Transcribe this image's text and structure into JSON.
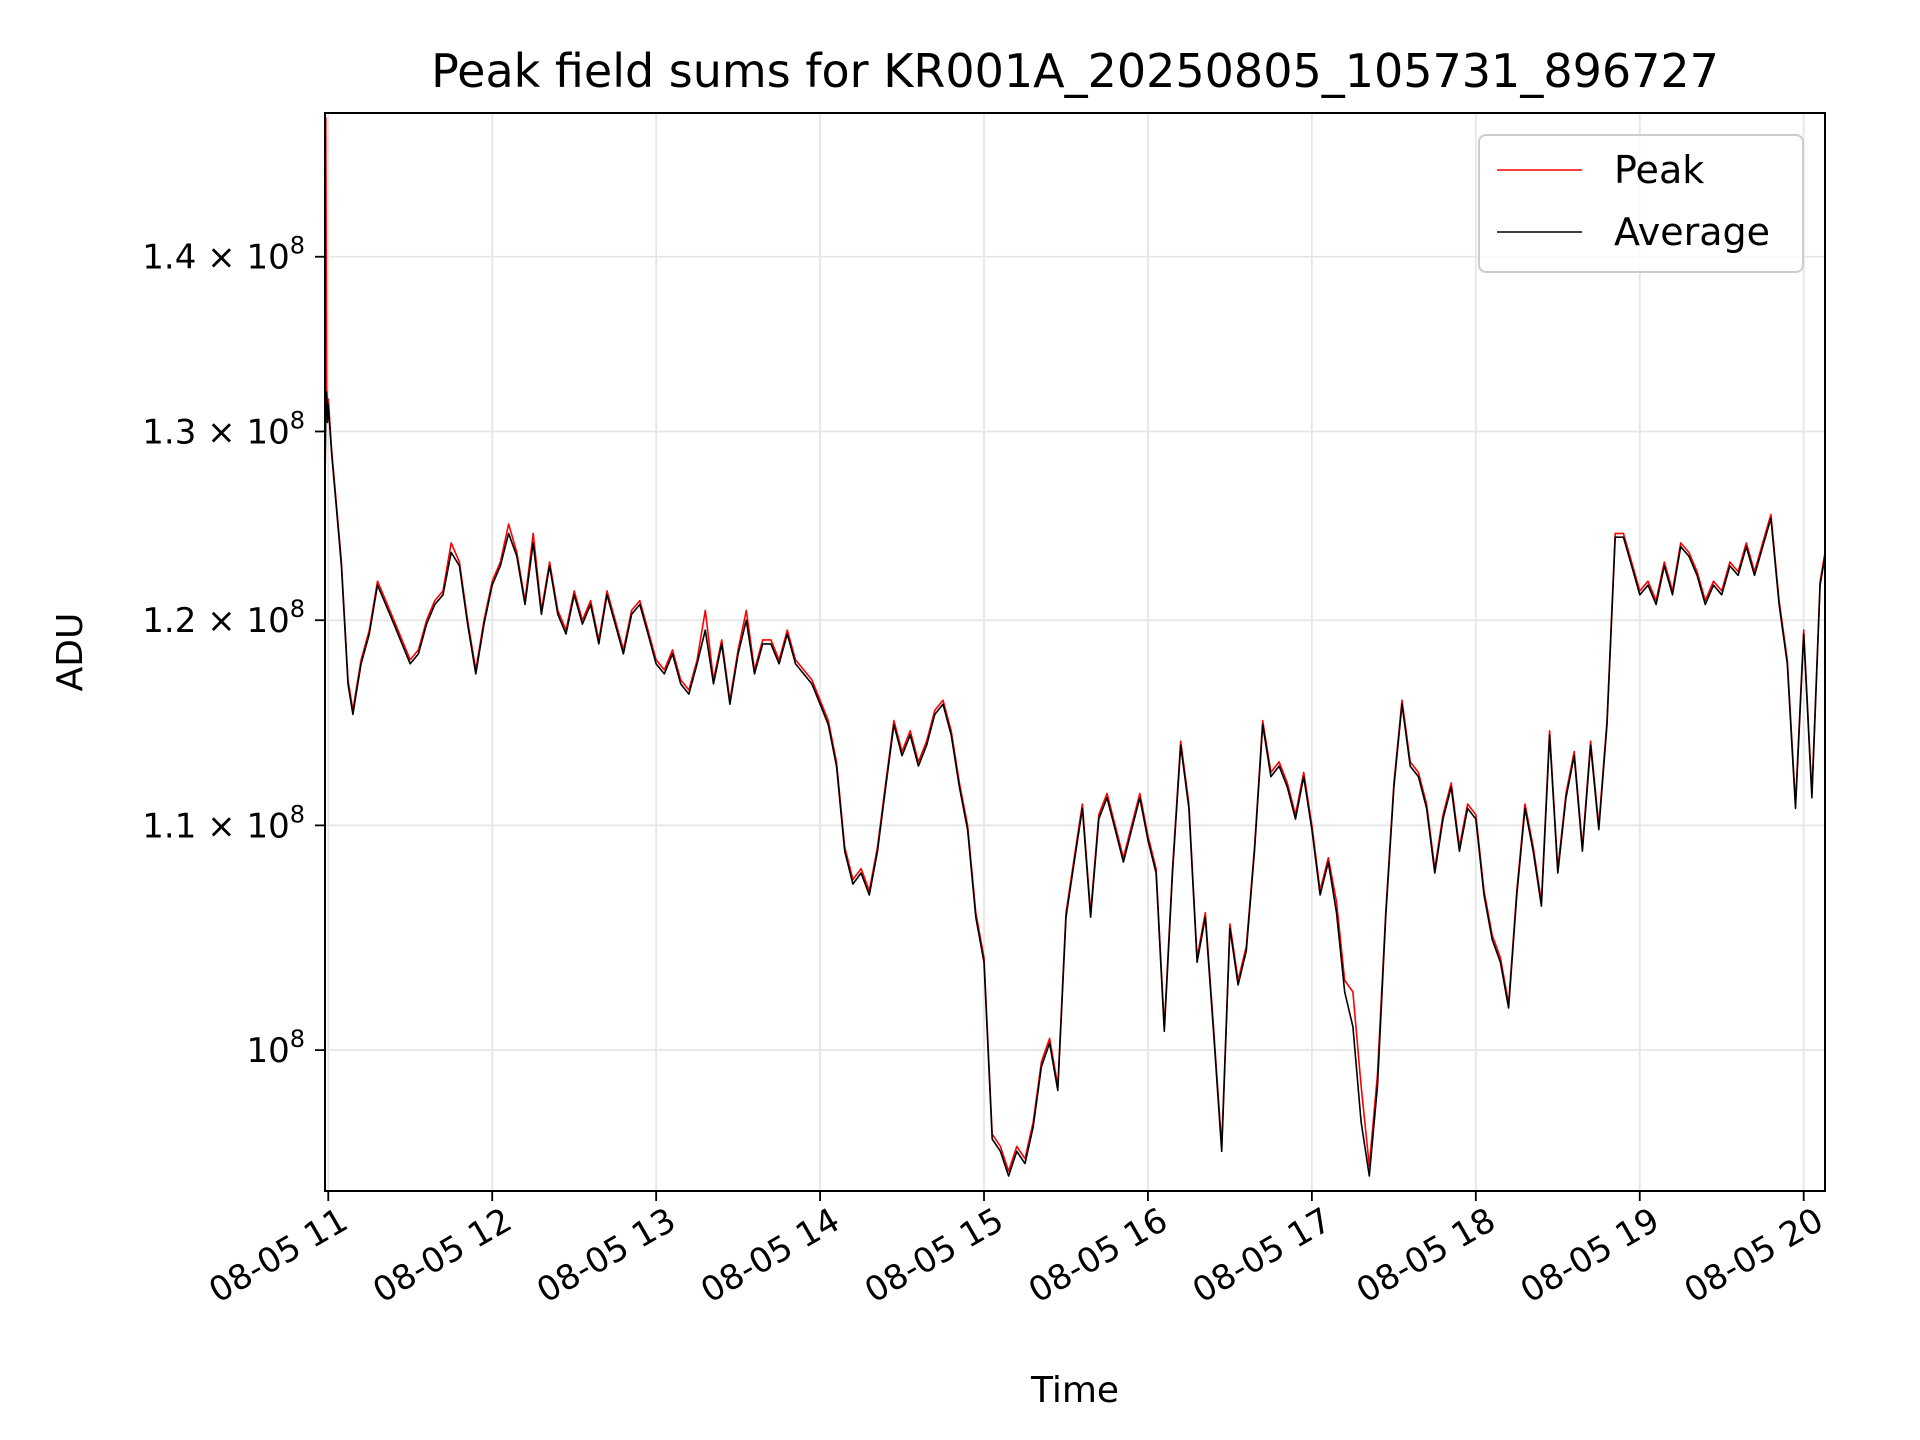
{
  "chart_data": {
    "type": "line",
    "title": "Peak field sums for KR001A_20250805_105731_896727",
    "xlabel": "Time",
    "ylabel": "ADU",
    "x_unit": "hour of day on 08-05",
    "xlim": [
      10.98,
      20.13
    ],
    "ylim": [
      94200000,
      148800000
    ],
    "y_scale": "log",
    "grid": true,
    "legend_position": "upper right",
    "x_ticks": [
      {
        "value": 11,
        "label": "08-05 11"
      },
      {
        "value": 12,
        "label": "08-05 12"
      },
      {
        "value": 13,
        "label": "08-05 13"
      },
      {
        "value": 14,
        "label": "08-05 14"
      },
      {
        "value": 15,
        "label": "08-05 15"
      },
      {
        "value": 16,
        "label": "08-05 16"
      },
      {
        "value": 17,
        "label": "08-05 17"
      },
      {
        "value": 18,
        "label": "08-05 18"
      },
      {
        "value": 19,
        "label": "08-05 19"
      },
      {
        "value": 20,
        "label": "08-05 20"
      }
    ],
    "y_ticks": [
      {
        "value": 100000000,
        "mantissa": "10",
        "exponent": "8",
        "prefix": ""
      },
      {
        "value": 110000000,
        "mantissa": "10",
        "exponent": "8",
        "prefix": "1.1 × "
      },
      {
        "value": 120000000,
        "mantissa": "10",
        "exponent": "8",
        "prefix": "1.2 × "
      },
      {
        "value": 130000000,
        "mantissa": "10",
        "exponent": "8",
        "prefix": "1.3 × "
      },
      {
        "value": 140000000,
        "mantissa": "10",
        "exponent": "8",
        "prefix": "1.4 × "
      }
    ],
    "series": [
      {
        "name": "Peak",
        "color": "#ff0000",
        "x": [
          10.98,
          10.985,
          10.99,
          10.995,
          11.0,
          11.02,
          11.05,
          11.08,
          11.12,
          11.15,
          11.17,
          11.2,
          11.25,
          11.3,
          11.35,
          11.4,
          11.45,
          11.5,
          11.55,
          11.6,
          11.65,
          11.7,
          11.75,
          11.8,
          11.85,
          11.9,
          11.95,
          12.0,
          12.05,
          12.1,
          12.15,
          12.2,
          12.25,
          12.3,
          12.35,
          12.4,
          12.45,
          12.5,
          12.55,
          12.6,
          12.65,
          12.7,
          12.75,
          12.8,
          12.85,
          12.9,
          12.95,
          13.0,
          13.05,
          13.1,
          13.15,
          13.2,
          13.25,
          13.3,
          13.35,
          13.4,
          13.45,
          13.5,
          13.55,
          13.6,
          13.65,
          13.7,
          13.75,
          13.8,
          13.85,
          13.9,
          13.95,
          14.0,
          14.05,
          14.1,
          14.15,
          14.2,
          14.25,
          14.3,
          14.35,
          14.4,
          14.45,
          14.5,
          14.55,
          14.6,
          14.65,
          14.7,
          14.75,
          14.8,
          14.85,
          14.9,
          14.95,
          15.0,
          15.05,
          15.1,
          15.15,
          15.2,
          15.25,
          15.3,
          15.35,
          15.4,
          15.45,
          15.5,
          15.55,
          15.6,
          15.65,
          15.7,
          15.75,
          15.8,
          15.85,
          15.9,
          15.95,
          16.0,
          16.05,
          16.1,
          16.15,
          16.2,
          16.25,
          16.3,
          16.35,
          16.4,
          16.45,
          16.5,
          16.55,
          16.6,
          16.65,
          16.7,
          16.75,
          16.8,
          16.85,
          16.9,
          16.95,
          17.0,
          17.05,
          17.1,
          17.15,
          17.2,
          17.25,
          17.3,
          17.35,
          17.4,
          17.45,
          17.5,
          17.55,
          17.6,
          17.65,
          17.7,
          17.75,
          17.8,
          17.85,
          17.9,
          17.95,
          18.0,
          18.05,
          18.1,
          18.15,
          18.2,
          18.25,
          18.3,
          18.35,
          18.4,
          18.45,
          18.5,
          18.55,
          18.6,
          18.65,
          18.7,
          18.75,
          18.8,
          18.85,
          18.9,
          18.95,
          19.0,
          19.05,
          19.1,
          19.15,
          19.2,
          19.25,
          19.3,
          19.35,
          19.4,
          19.45,
          19.5,
          19.55,
          19.6,
          19.65,
          19.7,
          19.75,
          19.8,
          19.85,
          19.9,
          19.95,
          20.0,
          20.05,
          20.1,
          20.13
        ],
        "values": [
          127000000,
          148500000,
          132500000,
          131000000,
          131800000,
          129000000,
          126000000,
          123000000,
          117000000,
          115500000,
          116500000,
          118000000,
          119500000,
          122000000,
          121000000,
          120000000,
          119000000,
          118000000,
          118500000,
          120000000,
          121000000,
          121500000,
          124000000,
          123000000,
          120000000,
          117500000,
          120000000,
          122000000,
          123000000,
          125000000,
          123500000,
          121000000,
          124500000,
          120500000,
          123000000,
          120500000,
          119500000,
          121500000,
          120000000,
          121000000,
          119000000,
          121500000,
          120000000,
          118500000,
          120500000,
          121000000,
          119500000,
          118000000,
          117500000,
          118500000,
          117000000,
          116500000,
          118000000,
          120500000,
          117000000,
          119000000,
          116000000,
          118500000,
          120500000,
          117500000,
          119000000,
          119000000,
          118000000,
          119500000,
          118000000,
          117500000,
          117000000,
          116000000,
          115000000,
          113000000,
          109000000,
          107500000,
          108000000,
          107000000,
          109000000,
          112000000,
          115000000,
          113500000,
          114500000,
          113000000,
          114000000,
          115500000,
          116000000,
          114500000,
          112000000,
          110000000,
          106000000,
          104000000,
          96500000,
          96000000,
          95000000,
          96000000,
          95500000,
          97000000,
          99500000,
          100500000,
          98500000,
          106000000,
          108500000,
          111000000,
          106000000,
          110500000,
          111500000,
          110000000,
          108500000,
          110000000,
          111500000,
          109500000,
          108000000,
          101000000,
          108000000,
          114000000,
          111000000,
          104000000,
          106000000,
          101000000,
          96000000,
          105500000,
          103000000,
          104500000,
          109000000,
          115000000,
          112500000,
          113000000,
          112000000,
          110500000,
          112500000,
          110000000,
          107000000,
          108500000,
          106500000,
          103000000,
          102500000,
          98500000,
          95200000,
          99000000,
          106000000,
          112000000,
          116000000,
          113000000,
          112500000,
          111000000,
          108000000,
          110500000,
          112000000,
          109000000,
          111000000,
          110500000,
          107000000,
          105000000,
          104000000,
          102000000,
          107000000,
          111000000,
          109000000,
          106500000,
          114500000,
          108000000,
          111500000,
          113500000,
          109000000,
          114000000,
          110000000,
          115000000,
          124500000,
          124500000,
          123000000,
          121500000,
          122000000,
          121000000,
          123000000,
          121500000,
          124000000,
          123500000,
          122500000,
          121000000,
          122000000,
          121500000,
          123000000,
          122500000,
          124000000,
          122500000,
          124000000,
          125500000,
          121000000,
          118000000,
          111000000,
          119500000,
          111500000,
          122000000,
          123500000
        ]
      },
      {
        "name": "Average",
        "color": "#000000",
        "x": [
          10.98,
          10.985,
          10.99,
          10.995,
          11.0,
          11.02,
          11.05,
          11.08,
          11.12,
          11.15,
          11.17,
          11.2,
          11.25,
          11.3,
          11.35,
          11.4,
          11.45,
          11.5,
          11.55,
          11.6,
          11.65,
          11.7,
          11.75,
          11.8,
          11.85,
          11.9,
          11.95,
          12.0,
          12.05,
          12.1,
          12.15,
          12.2,
          12.25,
          12.3,
          12.35,
          12.4,
          12.45,
          12.5,
          12.55,
          12.6,
          12.65,
          12.7,
          12.75,
          12.8,
          12.85,
          12.9,
          12.95,
          13.0,
          13.05,
          13.1,
          13.15,
          13.2,
          13.25,
          13.3,
          13.35,
          13.4,
          13.45,
          13.5,
          13.55,
          13.6,
          13.65,
          13.7,
          13.75,
          13.8,
          13.85,
          13.9,
          13.95,
          14.0,
          14.05,
          14.1,
          14.15,
          14.2,
          14.25,
          14.3,
          14.35,
          14.4,
          14.45,
          14.5,
          14.55,
          14.6,
          14.65,
          14.7,
          14.75,
          14.8,
          14.85,
          14.9,
          14.95,
          15.0,
          15.05,
          15.1,
          15.15,
          15.2,
          15.25,
          15.3,
          15.35,
          15.4,
          15.45,
          15.5,
          15.55,
          15.6,
          15.65,
          15.7,
          15.75,
          15.8,
          15.85,
          15.9,
          15.95,
          16.0,
          16.05,
          16.1,
          16.15,
          16.2,
          16.25,
          16.3,
          16.35,
          16.4,
          16.45,
          16.5,
          16.55,
          16.6,
          16.65,
          16.7,
          16.75,
          16.8,
          16.85,
          16.9,
          16.95,
          17.0,
          17.05,
          17.1,
          17.15,
          17.2,
          17.25,
          17.3,
          17.35,
          17.4,
          17.45,
          17.5,
          17.55,
          17.6,
          17.65,
          17.7,
          17.75,
          17.8,
          17.85,
          17.9,
          17.95,
          18.0,
          18.05,
          18.1,
          18.15,
          18.2,
          18.25,
          18.3,
          18.35,
          18.4,
          18.45,
          18.5,
          18.55,
          18.6,
          18.65,
          18.7,
          18.75,
          18.8,
          18.85,
          18.9,
          18.95,
          19.0,
          19.05,
          19.1,
          19.15,
          19.2,
          19.25,
          19.3,
          19.35,
          19.4,
          19.45,
          19.5,
          19.55,
          19.6,
          19.65,
          19.7,
          19.75,
          19.8,
          19.85,
          19.9,
          19.95,
          20.0,
          20.05,
          20.1,
          20.13
        ],
        "values": [
          127000000,
          131000000,
          132200000,
          130500000,
          131500000,
          128800000,
          125800000,
          122800000,
          116800000,
          115300000,
          116300000,
          117800000,
          119300000,
          121800000,
          120800000,
          119800000,
          118800000,
          117800000,
          118300000,
          119800000,
          120800000,
          121300000,
          123500000,
          122800000,
          119800000,
          117300000,
          119800000,
          121800000,
          122800000,
          124500000,
          123300000,
          120800000,
          124000000,
          120300000,
          122800000,
          120300000,
          119300000,
          121300000,
          119800000,
          120800000,
          118800000,
          121300000,
          119800000,
          118300000,
          120300000,
          120800000,
          119300000,
          117800000,
          117300000,
          118300000,
          116800000,
          116300000,
          117800000,
          119500000,
          116800000,
          118800000,
          115800000,
          118300000,
          120000000,
          117300000,
          118800000,
          118800000,
          117800000,
          119300000,
          117800000,
          117300000,
          116800000,
          115800000,
          114800000,
          112800000,
          108800000,
          107300000,
          107800000,
          106800000,
          108800000,
          111800000,
          114800000,
          113300000,
          114300000,
          112800000,
          113800000,
          115300000,
          115800000,
          114300000,
          111800000,
          109800000,
          105800000,
          103800000,
          96300000,
          95800000,
          94800000,
          95800000,
          95300000,
          96800000,
          99300000,
          100300000,
          98300000,
          105800000,
          108300000,
          110800000,
          105800000,
          110300000,
          111300000,
          109800000,
          108300000,
          109800000,
          111300000,
          109300000,
          107800000,
          100800000,
          107800000,
          113800000,
          110800000,
          103800000,
          105800000,
          100800000,
          95800000,
          105300000,
          102800000,
          104300000,
          108800000,
          114800000,
          112300000,
          112800000,
          111800000,
          110300000,
          112300000,
          109800000,
          106800000,
          108300000,
          106000000,
          102500000,
          101000000,
          97000000,
          94800000,
          98500000,
          105800000,
          111800000,
          115800000,
          112800000,
          112300000,
          110800000,
          107800000,
          110300000,
          111800000,
          108800000,
          110800000,
          110300000,
          106800000,
          104800000,
          103800000,
          101800000,
          106800000,
          110800000,
          108800000,
          106300000,
          114300000,
          107800000,
          111300000,
          113300000,
          108800000,
          113800000,
          109800000,
          114800000,
          124300000,
          124300000,
          122800000,
          121300000,
          121800000,
          120800000,
          122800000,
          121300000,
          123800000,
          123300000,
          122300000,
          120800000,
          121800000,
          121300000,
          122800000,
          122300000,
          123800000,
          122300000,
          123800000,
          125300000,
          120800000,
          117800000,
          110800000,
          119300000,
          111300000,
          121800000,
          123300000
        ]
      }
    ]
  }
}
